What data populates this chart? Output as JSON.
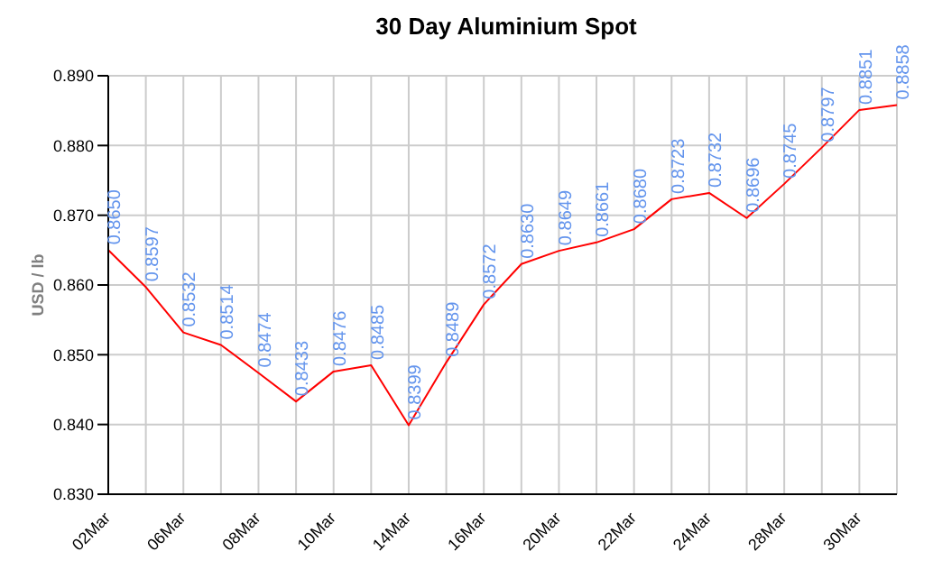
{
  "chart_data": {
    "type": "line",
    "title": "30 Day Aluminium Spot",
    "ylabel": "USD / lb",
    "categories": [
      "02Mar",
      null,
      "06Mar",
      null,
      "08Mar",
      null,
      "10Mar",
      null,
      "14Mar",
      null,
      "16Mar",
      null,
      "20Mar",
      null,
      "22Mar",
      null,
      "24Mar",
      null,
      "28Mar",
      null,
      "30Mar",
      null
    ],
    "series": [
      {
        "color": "#ff0000",
        "values": [
          0.865,
          0.8597,
          0.8532,
          0.8514,
          0.8474,
          0.8433,
          0.8476,
          0.8485,
          0.8399,
          0.8489,
          0.8572,
          0.863,
          0.8649,
          0.8661,
          0.868,
          0.8723,
          0.8732,
          0.8696,
          0.8745,
          0.8797,
          0.8851,
          0.8858
        ],
        "value_labels": [
          "0.8650",
          "0.8597",
          "0.8532",
          "0.8514",
          "0.8474",
          "0.8433",
          "0.8476",
          "0.8485",
          "0.8399",
          "0.8489",
          "0.8572",
          "0.8630",
          "0.8649",
          "0.8661",
          "0.8680",
          "0.8723",
          "0.8732",
          "0.8696",
          "0.8745",
          "0.8797",
          "0.8851",
          "0.8858"
        ]
      }
    ],
    "ylim": [
      0.83,
      0.89
    ],
    "yticks": [
      {
        "value": 0.83,
        "label": "0.830"
      },
      {
        "value": 0.84,
        "label": "0.840"
      },
      {
        "value": 0.85,
        "label": "0.850"
      },
      {
        "value": 0.86,
        "label": "0.860"
      },
      {
        "value": 0.87,
        "label": "0.870"
      },
      {
        "value": 0.88,
        "label": "0.880"
      },
      {
        "value": 0.89,
        "label": "0.890"
      }
    ],
    "grid": true,
    "marker": "none",
    "line_style": "solid",
    "legend": false
  }
}
